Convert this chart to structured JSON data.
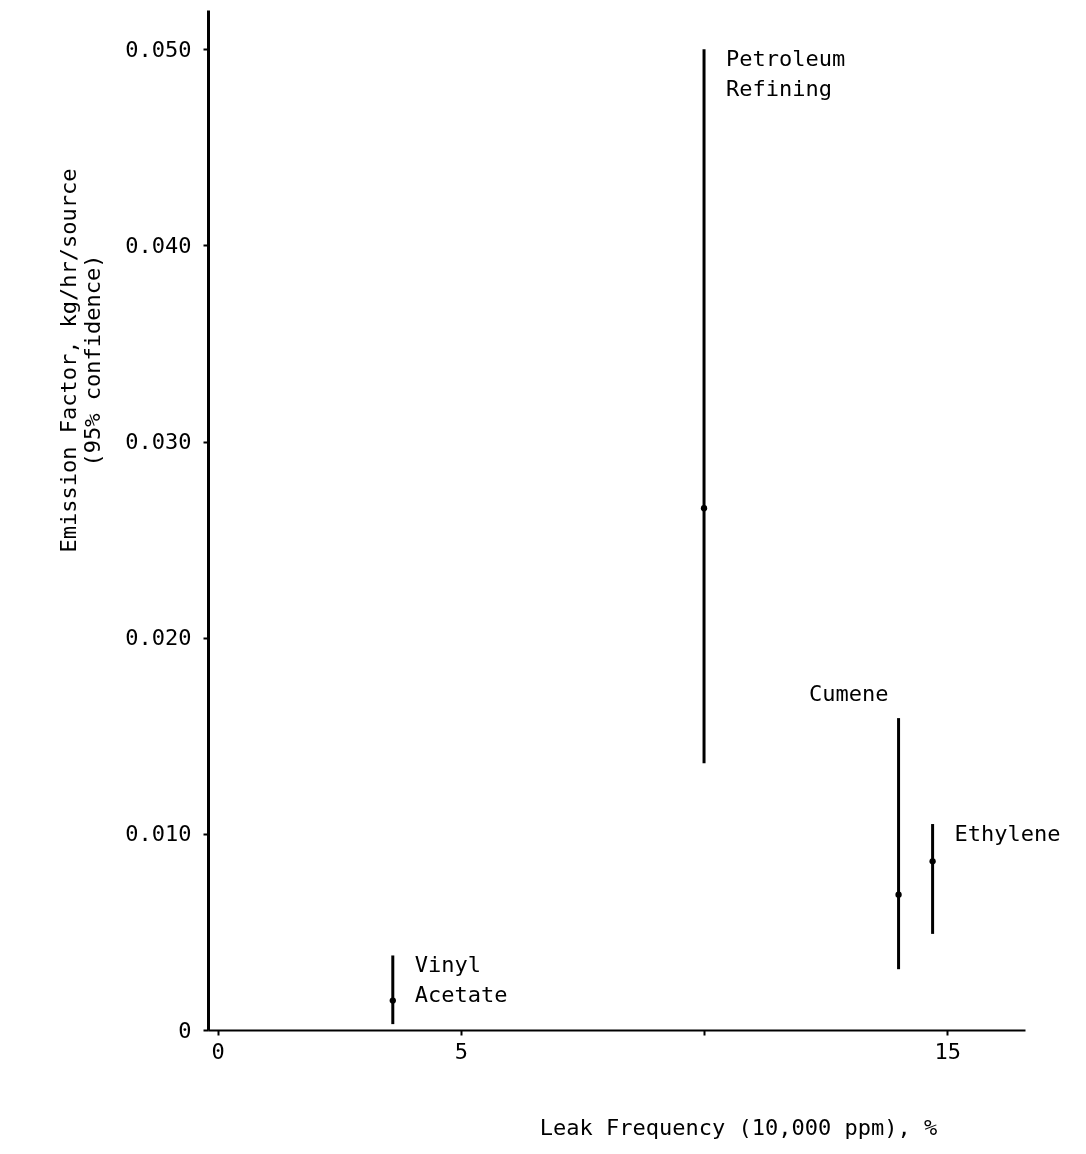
{
  "chart_data": {
    "type": "scatter",
    "xlabel": "Leak Frequency (10,000 ppm), %",
    "ylabel": "Emission Factor, kg/hr/source\n(95% confidence)",
    "x": [
      3.6,
      10.0,
      14.0,
      14.7
    ],
    "series": [
      {
        "color": "#000000",
        "values": [
          0.0015,
          0.0266,
          0.0069,
          0.0086
        ],
        "errors": [
          [
            0.0003,
            0.0038
          ],
          [
            0.0136,
            0.05
          ],
          [
            0.0031,
            0.0159
          ],
          [
            0.0049,
            0.0105
          ]
        ]
      }
    ],
    "xlim": [
      -0.2,
      16.6
    ],
    "ylim": [
      0,
      0.052
    ],
    "xticks": [
      0,
      5,
      {
        "value": 10,
        "label": null
      },
      15
    ],
    "yticks": [
      {
        "value": 0,
        "label": "0"
      },
      {
        "value": 0.01,
        "label": "0.010"
      },
      {
        "value": 0.02,
        "label": "0.020"
      },
      {
        "value": 0.03,
        "label": "0.030"
      },
      {
        "value": 0.04,
        "label": "0.040"
      },
      {
        "value": 0.05,
        "label": "0.050"
      }
    ],
    "grid": false,
    "marker": "circle",
    "annotations": [
      {
        "text": "Vinyl\nAcetate",
        "x": 3.6,
        "y": 0.0038
      },
      {
        "text": "Petroleum\nRefining",
        "x": 10.0,
        "y": 0.05
      },
      {
        "text": "Cumene",
        "x": 14.0,
        "y": 0.0159
      },
      {
        "text": "Ethylene",
        "x": 14.7,
        "y": 0.0105
      }
    ]
  }
}
